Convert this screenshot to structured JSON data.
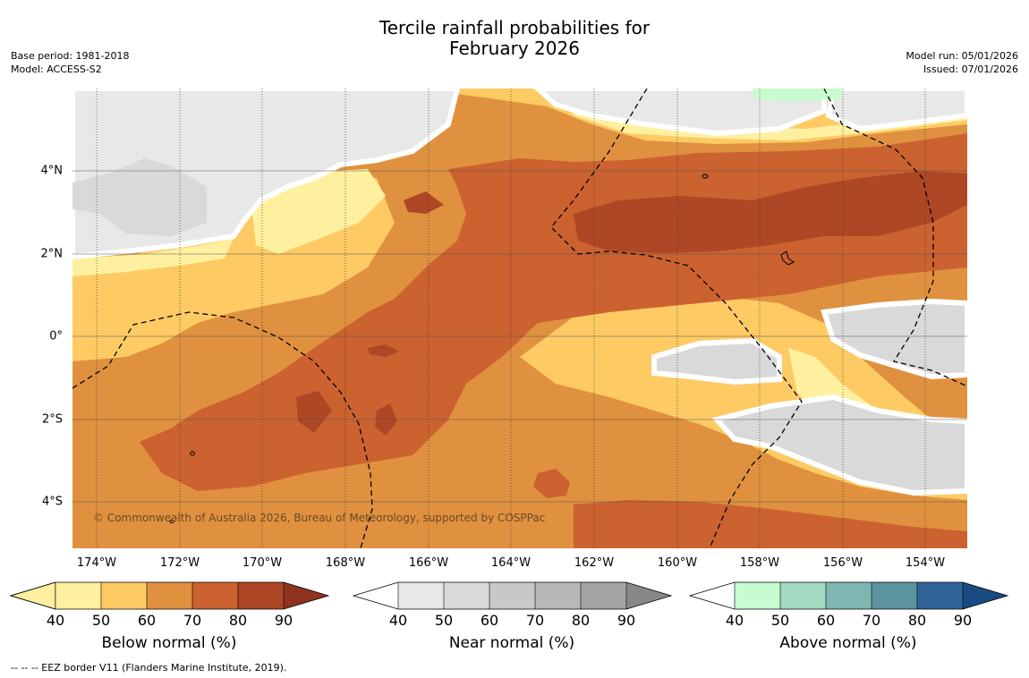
{
  "title": {
    "line1": "Tercile rainfall probabilities for",
    "line2": "February 2026"
  },
  "meta_left": {
    "base_period": "Base period: 1981-2018",
    "model": "Model: ACCESS-S2"
  },
  "meta_right": {
    "model_run": "Model run: 05/01/2026",
    "issued": "Issued: 07/01/2026"
  },
  "map": {
    "x_ticks": [
      "174°W",
      "172°W",
      "170°W",
      "168°W",
      "166°W",
      "164°W",
      "162°W",
      "160°W",
      "158°W",
      "156°W",
      "154°W"
    ],
    "y_ticks": [
      "4°N",
      "2°N",
      "0°",
      "2°S",
      "4°S"
    ],
    "copyright": "© Commonwealth of Australia 2026, Bureau of Meteorology, supported by COSPPac"
  },
  "colorbars": [
    {
      "label": "Below normal (%)",
      "ticks": [
        "40",
        "50",
        "60",
        "70",
        "80",
        "90"
      ],
      "colors": [
        "#fff0a0",
        "#fdca64",
        "#e0913f",
        "#cb6230",
        "#ae4725",
        "#903220"
      ]
    },
    {
      "label": "Near normal (%)",
      "ticks": [
        "40",
        "50",
        "60",
        "70",
        "80",
        "90"
      ],
      "colors": [
        "#e8e8e8",
        "#d9d9d9",
        "#c8c8c8",
        "#b7b7b7",
        "#a4a4a4",
        "#888888"
      ]
    },
    {
      "label": "Above normal (%)",
      "ticks": [
        "40",
        "50",
        "60",
        "70",
        "80",
        "90"
      ],
      "colors": [
        "#c8fbd0",
        "#a3d9c0",
        "#80b6b2",
        "#5b93a0",
        "#31659a",
        "#174b82"
      ]
    }
  ],
  "footnote": "--  --  -- EEZ border V11 (Flanders Marine Institute, 2019)."
}
